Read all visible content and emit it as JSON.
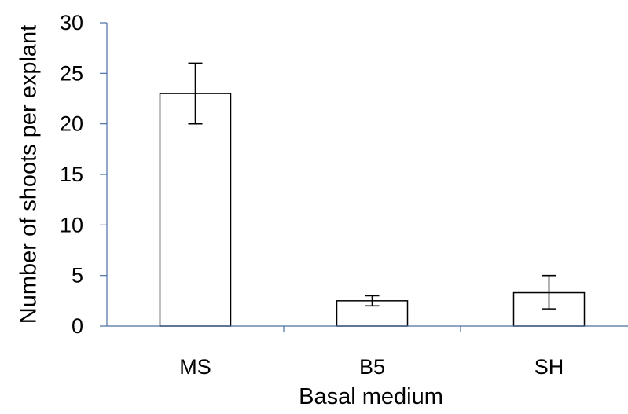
{
  "chart_data": {
    "type": "bar",
    "title": "",
    "xlabel": "Basal medium",
    "ylabel": "Number of shoots per explant",
    "categories": [
      "MS",
      "B5",
      "SH"
    ],
    "values": [
      23,
      2.5,
      3.3
    ],
    "error_low": [
      20,
      2.0,
      1.7
    ],
    "error_high": [
      26,
      3.0,
      5.0
    ],
    "ylim": [
      0,
      30
    ],
    "yticks": [
      "0",
      "5",
      "10",
      "15",
      "20",
      "25",
      "30"
    ],
    "grid": false,
    "legend": "none",
    "colors": {
      "bar_fill": "#ffffff",
      "bar_stroke": "#000000",
      "x_axis": "#4a6fa5",
      "y_axis": "#4a6fa5",
      "error_bar": "#000000"
    }
  }
}
